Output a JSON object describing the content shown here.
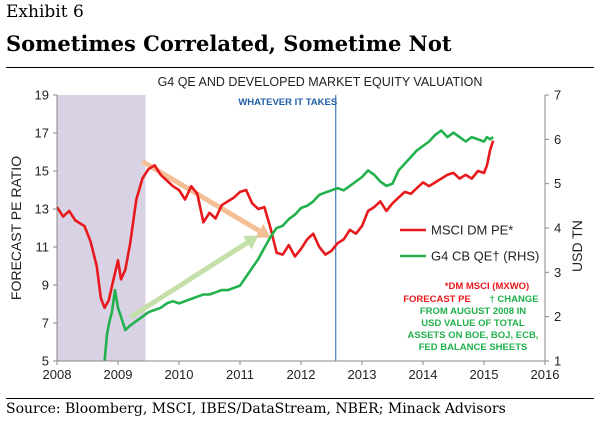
{
  "header": {
    "exhibit": "Exhibit 6",
    "headline": "Sometimes Correlated, Sometime Not"
  },
  "footer": {
    "source": "Source: Bloomberg, MSCI, IBES/DataStream, NBER; Minack Advisors"
  },
  "colors": {
    "pe_line": "#e8191c",
    "qe_line": "#22b14c",
    "recession": "#d9d2e5",
    "event_line": "#1f5fa8",
    "arrow_orange": "#f4bf95",
    "arrow_green": "#c5dfa9",
    "annot_red": "#e8191c",
    "annot_green": "#22b14c"
  },
  "chart_data": {
    "type": "line",
    "title": "G4 QE AND DEVELOPED MARKET EQUITY VALUATION",
    "ylabel": "FORECAST PE RATIO",
    "y2label": "USD TN",
    "ylim": [
      5,
      19
    ],
    "y2lim": [
      1,
      7
    ],
    "xlim": [
      2008,
      2016
    ],
    "x_ticks": [
      "2008",
      "2009",
      "2010",
      "2011",
      "2012",
      "2013",
      "2014",
      "2015",
      "2016"
    ],
    "y_ticks": [
      "5",
      "7",
      "9",
      "11",
      "13",
      "15",
      "17",
      "19"
    ],
    "y2_ticks": [
      "1",
      "2",
      "3",
      "4",
      "5",
      "6",
      "7"
    ],
    "grid": false,
    "legend_position": "right",
    "shaded_region": {
      "x": [
        2008.0,
        2009.45
      ],
      "label": ""
    },
    "event_line": {
      "x": 2012.57,
      "label": "WHATEVER IT TAKES"
    },
    "series": [
      {
        "name": "MSCI DM PE*",
        "axis": "left",
        "x": [
          2008.0,
          2008.1,
          2008.2,
          2008.3,
          2008.45,
          2008.55,
          2008.65,
          2008.72,
          2008.78,
          2008.85,
          2008.92,
          2009.0,
          2009.05,
          2009.12,
          2009.2,
          2009.3,
          2009.4,
          2009.5,
          2009.6,
          2009.7,
          2009.8,
          2009.9,
          2010.0,
          2010.1,
          2010.2,
          2010.3,
          2010.4,
          2010.5,
          2010.6,
          2010.7,
          2010.8,
          2010.9,
          2011.0,
          2011.1,
          2011.2,
          2011.3,
          2011.4,
          2011.5,
          2011.6,
          2011.7,
          2011.8,
          2011.9,
          2012.0,
          2012.1,
          2012.2,
          2012.3,
          2012.4,
          2012.5,
          2012.6,
          2012.7,
          2012.8,
          2012.9,
          2013.0,
          2013.1,
          2013.2,
          2013.3,
          2013.4,
          2013.5,
          2013.6,
          2013.7,
          2013.8,
          2013.9,
          2014.0,
          2014.1,
          2014.2,
          2014.3,
          2014.4,
          2014.5,
          2014.6,
          2014.7,
          2014.8,
          2014.9,
          2015.0,
          2015.05,
          2015.1,
          2015.15
        ],
        "values": [
          13.1,
          12.6,
          12.9,
          12.4,
          12.1,
          11.3,
          10.0,
          8.3,
          7.8,
          8.2,
          9.2,
          10.3,
          9.3,
          9.8,
          11.2,
          13.5,
          14.6,
          15.1,
          15.3,
          14.8,
          14.5,
          14.2,
          14.0,
          13.5,
          14.2,
          13.8,
          12.3,
          12.8,
          12.5,
          13.2,
          13.4,
          13.6,
          13.9,
          14.0,
          13.3,
          13.0,
          13.1,
          12.0,
          10.7,
          10.6,
          11.1,
          10.5,
          10.9,
          11.4,
          11.7,
          11.0,
          10.6,
          10.8,
          11.2,
          11.4,
          11.9,
          11.7,
          12.1,
          12.9,
          13.1,
          13.4,
          12.9,
          13.3,
          13.6,
          13.9,
          13.8,
          14.1,
          14.4,
          14.2,
          14.4,
          14.6,
          14.8,
          14.9,
          14.6,
          14.8,
          14.6,
          15.0,
          14.9,
          15.3,
          16.1,
          16.6
        ]
      },
      {
        "name": "G4 CB QE† (RHS)",
        "axis": "right",
        "x": [
          2008.78,
          2008.82,
          2008.86,
          2008.9,
          2008.95,
          2009.0,
          2009.05,
          2009.12,
          2009.2,
          2009.3,
          2009.4,
          2009.5,
          2009.6,
          2009.7,
          2009.8,
          2009.9,
          2010.0,
          2010.1,
          2010.2,
          2010.3,
          2010.4,
          2010.5,
          2010.6,
          2010.7,
          2010.8,
          2010.9,
          2011.0,
          2011.1,
          2011.2,
          2011.3,
          2011.4,
          2011.5,
          2011.6,
          2011.7,
          2011.8,
          2011.9,
          2012.0,
          2012.1,
          2012.2,
          2012.3,
          2012.4,
          2012.5,
          2012.6,
          2012.7,
          2012.8,
          2012.9,
          2013.0,
          2013.1,
          2013.2,
          2013.3,
          2013.4,
          2013.5,
          2013.6,
          2013.7,
          2013.8,
          2013.9,
          2014.0,
          2014.1,
          2014.2,
          2014.3,
          2014.4,
          2014.5,
          2014.6,
          2014.7,
          2014.8,
          2014.9,
          2015.0,
          2015.05,
          2015.1,
          2015.15
        ],
        "values": [
          1.0,
          1.6,
          1.9,
          2.1,
          2.6,
          2.2,
          2.0,
          1.7,
          1.8,
          1.9,
          2.0,
          2.1,
          2.15,
          2.2,
          2.3,
          2.35,
          2.3,
          2.35,
          2.4,
          2.45,
          2.5,
          2.5,
          2.55,
          2.6,
          2.6,
          2.65,
          2.7,
          2.9,
          3.1,
          3.3,
          3.55,
          3.8,
          4.0,
          4.05,
          4.2,
          4.3,
          4.45,
          4.5,
          4.6,
          4.75,
          4.8,
          4.85,
          4.9,
          4.85,
          4.95,
          5.05,
          5.15,
          5.3,
          5.2,
          5.05,
          4.95,
          5.0,
          5.3,
          5.45,
          5.6,
          5.75,
          5.85,
          5.95,
          6.1,
          6.2,
          6.05,
          6.15,
          6.05,
          5.95,
          6.05,
          6.0,
          5.95,
          6.05,
          6.0,
          6.05
        ]
      }
    ],
    "arrows": [
      {
        "from": [
          2009.4,
          15.5
        ],
        "to": [
          2011.5,
          11.5
        ],
        "color": "orange"
      },
      {
        "from": [
          2009.2,
          7.3
        ],
        "to": [
          2011.3,
          11.6
        ],
        "color": "green"
      }
    ],
    "notes": {
      "red": [
        "*DM MSCI (MXWO)",
        "FORECAST PE"
      ],
      "green": [
        "† CHANGE",
        "FROM AUGUST 2008 IN",
        "USD VALUE OF TOTAL",
        "ASSETS ON BOE, BOJ, ECB,",
        "FED BALANCE SHEETS"
      ]
    }
  }
}
